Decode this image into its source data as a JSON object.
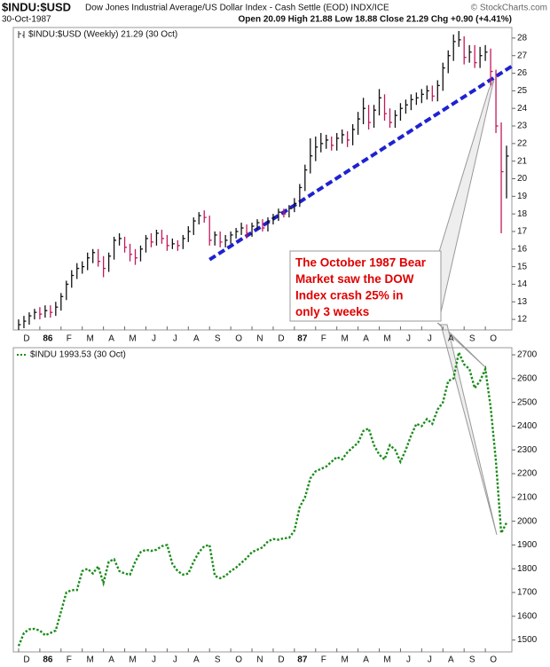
{
  "header": {
    "symbol": "$INDU:$USD",
    "name": "Dow Jones Industrial Average/US Dollar Index - Cash Settle (EOD) INDX/ICE",
    "credit": "© StockCharts.com",
    "date": "30-Oct-1987",
    "quote": "Open 20.09  High 21.88  Low 18.88  Close 21.29  Chg +0.90 (+4.41%)"
  },
  "chart_data": [
    {
      "type": "ohlc",
      "x": [
        0,
        1,
        2,
        3,
        4,
        5,
        6,
        7,
        8,
        9,
        10,
        11,
        12,
        13,
        14,
        15,
        16,
        17,
        18,
        19,
        20,
        21,
        22,
        23,
        24,
        25,
        26,
        27,
        28,
        29,
        30,
        31,
        32,
        33,
        34,
        35,
        36,
        37,
        38,
        39,
        40,
        41,
        42,
        43,
        44,
        45,
        46,
        47,
        48,
        49,
        50,
        51,
        52,
        53,
        54,
        55,
        56,
        57,
        58,
        59,
        60,
        61,
        62,
        63,
        64,
        65,
        66,
        67,
        68,
        69,
        70,
        71,
        72,
        73,
        74,
        75,
        76,
        77,
        78,
        79,
        80,
        81,
        82,
        83,
        84,
        85,
        86,
        87,
        88,
        89,
        90,
        91,
        92
      ],
      "xlim": [
        -1,
        93
      ],
      "xticks": [
        {
          "value": 0,
          "label": "D"
        },
        {
          "value": 4,
          "label": "86"
        },
        {
          "value": 8,
          "label": "F"
        },
        {
          "value": 12,
          "label": "M"
        },
        {
          "value": 16,
          "label": "A"
        },
        {
          "value": 20,
          "label": "M"
        },
        {
          "value": 24,
          "label": "J"
        },
        {
          "value": 28,
          "label": "J"
        },
        {
          "value": 32,
          "label": "A"
        },
        {
          "value": 36,
          "label": "S"
        },
        {
          "value": 40,
          "label": "O"
        },
        {
          "value": 44,
          "label": "N"
        },
        {
          "value": 48,
          "label": "D"
        },
        {
          "value": 52,
          "label": "87"
        },
        {
          "value": 56,
          "label": "F"
        },
        {
          "value": 60,
          "label": "M"
        },
        {
          "value": 64,
          "label": "A"
        },
        {
          "value": 68,
          "label": "M"
        },
        {
          "value": 72,
          "label": "J"
        },
        {
          "value": 76,
          "label": "J"
        },
        {
          "value": 80,
          "label": "A"
        },
        {
          "value": 84,
          "label": "S"
        },
        {
          "value": 88,
          "label": "O"
        }
      ],
      "ylim": [
        11.4,
        28.6
      ],
      "yticks": [
        12,
        13,
        14,
        15,
        16,
        17,
        18,
        19,
        20,
        21,
        22,
        23,
        24,
        25,
        26,
        27,
        28
      ],
      "series": [
        {
          "name": "$INDU:$USD (Weekly) 21.29 (30 Oct)",
          "color": "#111111",
          "down_color": "#c2185b",
          "high": [
            12.0,
            12.2,
            12.4,
            12.6,
            12.7,
            12.8,
            12.8,
            13.0,
            13.5,
            14.2,
            14.8,
            15.2,
            15.3,
            15.8,
            16.0,
            16.0,
            15.6,
            15.8,
            16.7,
            16.9,
            16.7,
            16.3,
            16.0,
            16.2,
            16.8,
            16.9,
            17.1,
            17.1,
            16.8,
            16.6,
            16.5,
            16.8,
            17.3,
            17.8,
            18.1,
            18.2,
            17.9,
            17.0,
            17.0,
            16.8,
            17.0,
            17.2,
            17.5,
            17.4,
            17.5,
            17.7,
            17.7,
            17.8,
            18.0,
            18.3,
            18.3,
            18.5,
            18.9,
            19.7,
            20.8,
            22.3,
            22.4,
            22.6,
            22.5,
            22.4,
            22.6,
            22.8,
            22.7,
            23.1,
            23.8,
            24.6,
            24.2,
            24.2,
            25.1,
            24.8,
            24.0,
            23.9,
            24.3,
            24.5,
            24.8,
            24.9,
            25.1,
            25.3,
            25.3,
            25.6,
            26.6,
            27.3,
            28.2,
            28.4,
            28.1,
            27.6,
            27.6,
            27.5,
            27.6,
            27.4,
            26.2,
            23.2,
            21.88
          ],
          "low": [
            11.4,
            11.5,
            11.7,
            12.0,
            12.0,
            12.1,
            12.1,
            12.2,
            12.5,
            13.1,
            13.8,
            14.3,
            14.6,
            14.8,
            15.2,
            15.0,
            14.4,
            14.7,
            15.4,
            16.2,
            15.8,
            15.3,
            15.1,
            15.3,
            15.8,
            16.1,
            16.2,
            16.3,
            15.9,
            16.0,
            15.9,
            16.0,
            16.4,
            16.8,
            17.4,
            17.5,
            16.2,
            16.2,
            16.1,
            16.1,
            16.3,
            16.6,
            16.8,
            16.6,
            16.7,
            17.1,
            17.0,
            17.0,
            17.4,
            17.6,
            17.8,
            17.8,
            18.1,
            18.4,
            19.3,
            20.3,
            21.0,
            21.5,
            21.7,
            21.6,
            21.6,
            22.0,
            21.8,
            21.9,
            22.5,
            23.1,
            22.8,
            22.9,
            23.6,
            23.3,
            22.9,
            22.9,
            23.3,
            23.7,
            23.9,
            24.2,
            24.3,
            24.5,
            24.4,
            24.4,
            25.0,
            26.0,
            26.7,
            27.5,
            26.5,
            26.6,
            26.3,
            26.3,
            26.7,
            25.3,
            22.6,
            16.9,
            18.88
          ],
          "close": [
            11.7,
            11.9,
            12.2,
            12.4,
            12.3,
            12.5,
            12.4,
            12.7,
            13.3,
            14.0,
            14.5,
            14.9,
            15.0,
            15.5,
            15.8,
            15.3,
            14.9,
            15.6,
            16.5,
            16.6,
            16.1,
            15.7,
            15.5,
            16.0,
            16.6,
            16.4,
            16.9,
            16.6,
            16.2,
            16.3,
            16.2,
            16.6,
            17.0,
            17.6,
            17.9,
            17.8,
            16.5,
            16.8,
            16.4,
            16.5,
            16.8,
            17.0,
            17.2,
            16.9,
            17.3,
            17.5,
            17.2,
            17.6,
            17.8,
            18.1,
            18.0,
            18.3,
            18.6,
            19.5,
            20.5,
            21.3,
            21.8,
            22.0,
            22.2,
            21.9,
            22.3,
            22.5,
            22.2,
            22.8,
            23.4,
            24.0,
            23.2,
            23.9,
            24.6,
            23.7,
            23.2,
            23.6,
            24.0,
            24.2,
            24.5,
            24.6,
            24.8,
            25.0,
            24.7,
            25.3,
            26.3,
            27.0,
            27.8,
            27.9,
            26.9,
            27.2,
            26.6,
            27.0,
            27.2,
            26.1,
            23.0,
            20.4,
            21.29
          ]
        }
      ],
      "trendline": {
        "x": [
          36,
          93
        ],
        "y": [
          15.4,
          26.4
        ],
        "color": "#1e22d0"
      },
      "annotation": {
        "lines": [
          "The October 1987 Bear",
          "Market saw the DOW",
          "Index crash 25% in",
          "only 3 weeks"
        ],
        "color": "#e00000"
      }
    },
    {
      "type": "line",
      "x": [
        0,
        1,
        2,
        3,
        4,
        5,
        6,
        7,
        8,
        9,
        10,
        11,
        12,
        13,
        14,
        15,
        16,
        17,
        18,
        19,
        20,
        21,
        22,
        23,
        24,
        25,
        26,
        27,
        28,
        29,
        30,
        31,
        32,
        33,
        34,
        35,
        36,
        37,
        38,
        39,
        40,
        41,
        42,
        43,
        44,
        45,
        46,
        47,
        48,
        49,
        50,
        51,
        52,
        53,
        54,
        55,
        56,
        57,
        58,
        59,
        60,
        61,
        62,
        63,
        64,
        65,
        66,
        67,
        68,
        69,
        70,
        71,
        72,
        73,
        74,
        75,
        76,
        77,
        78,
        79,
        80,
        81,
        82,
        83,
        84,
        85,
        86,
        87,
        88,
        89,
        90,
        91,
        92
      ],
      "xlim": [
        -1,
        93
      ],
      "xticks": [
        {
          "value": 0,
          "label": "D"
        },
        {
          "value": 4,
          "label": "86"
        },
        {
          "value": 8,
          "label": "F"
        },
        {
          "value": 12,
          "label": "M"
        },
        {
          "value": 16,
          "label": "A"
        },
        {
          "value": 20,
          "label": "M"
        },
        {
          "value": 24,
          "label": "J"
        },
        {
          "value": 28,
          "label": "J"
        },
        {
          "value": 32,
          "label": "A"
        },
        {
          "value": 36,
          "label": "S"
        },
        {
          "value": 40,
          "label": "O"
        },
        {
          "value": 44,
          "label": "N"
        },
        {
          "value": 48,
          "label": "D"
        },
        {
          "value": 52,
          "label": "87"
        },
        {
          "value": 56,
          "label": "F"
        },
        {
          "value": 60,
          "label": "M"
        },
        {
          "value": 64,
          "label": "A"
        },
        {
          "value": 68,
          "label": "M"
        },
        {
          "value": 72,
          "label": "J"
        },
        {
          "value": 76,
          "label": "J"
        },
        {
          "value": 80,
          "label": "A"
        },
        {
          "value": 84,
          "label": "S"
        },
        {
          "value": 88,
          "label": "O"
        }
      ],
      "ylim": [
        1450,
        2730
      ],
      "yticks": [
        1500,
        1600,
        1700,
        1800,
        1900,
        2000,
        2100,
        2200,
        2300,
        2400,
        2500,
        2600,
        2700
      ],
      "series": [
        {
          "name": "$INDU 1993.53 (30 Oct)",
          "color": "#1a8c1a",
          "values": [
            1475,
            1530,
            1545,
            1547,
            1540,
            1520,
            1530,
            1540,
            1620,
            1700,
            1710,
            1710,
            1790,
            1800,
            1780,
            1810,
            1740,
            1830,
            1840,
            1790,
            1780,
            1775,
            1830,
            1870,
            1880,
            1875,
            1880,
            1895,
            1900,
            1820,
            1790,
            1775,
            1780,
            1830,
            1870,
            1895,
            1900,
            1770,
            1760,
            1770,
            1790,
            1805,
            1825,
            1845,
            1870,
            1880,
            1890,
            1915,
            1925,
            1922,
            1928,
            1930,
            1960,
            2060,
            2100,
            2180,
            2210,
            2220,
            2230,
            2250,
            2270,
            2260,
            2290,
            2310,
            2330,
            2380,
            2390,
            2320,
            2280,
            2260,
            2320,
            2300,
            2250,
            2300,
            2360,
            2410,
            2400,
            2430,
            2410,
            2470,
            2500,
            2590,
            2600,
            2710,
            2660,
            2640,
            2560,
            2590,
            2640,
            2480,
            2250,
            1950,
            1993.53
          ]
        }
      ]
    }
  ]
}
